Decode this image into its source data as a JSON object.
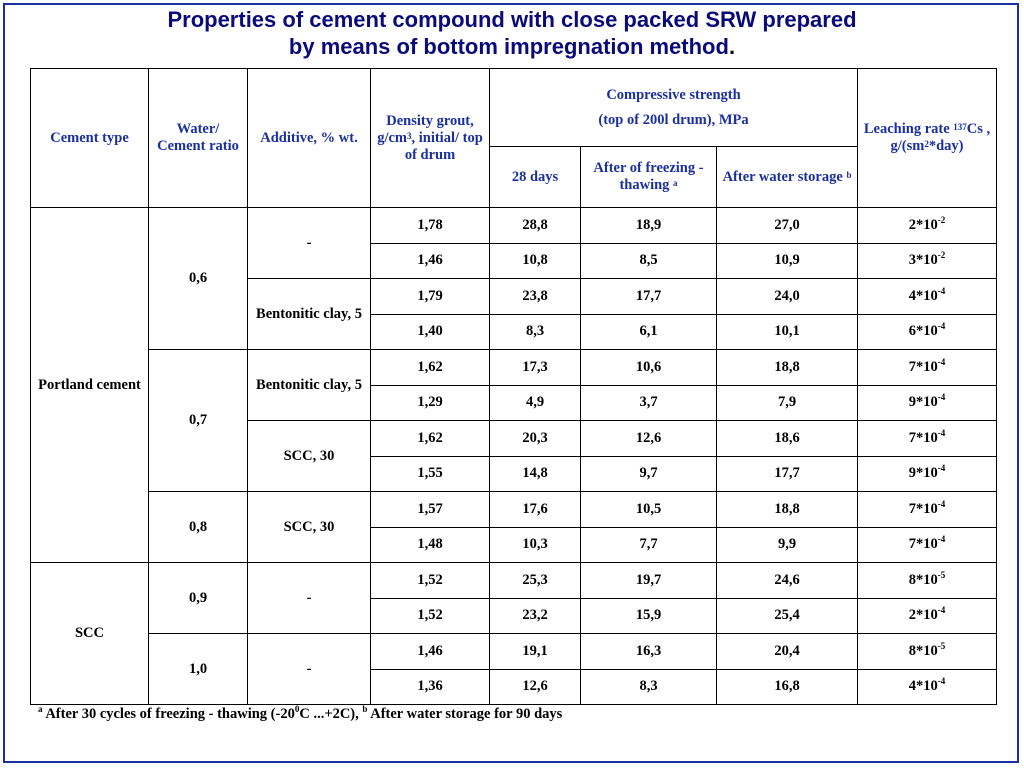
{
  "title": {
    "line1": "Properties of cement compound with close packed SRW prepared",
    "line2": "by means of bottom impregnation method",
    "dot": "."
  },
  "header": {
    "cement_type": "Cement type",
    "wc_ratio": "Water/ Cement ratio",
    "additive": "Additive, % wt.",
    "density_a": "Density grout, g/cm",
    "density_sup": "3",
    "density_b": ", initial/ top of drum",
    "compressive_1": "Compressive strength",
    "compressive_2": "(top of 200l drum), MPa",
    "leach_a": "Leaching rate ",
    "leach_sup1": "137",
    "leach_b": "Cs ,",
    "leach_c": "g/(sm",
    "leach_sup2": "2",
    "leach_d": "*day)",
    "days28": "28 days",
    "freezing": "After of freezing - thawing ",
    "freezing_sup": "a",
    "water_storage": "After water storage ",
    "water_sup": "b"
  },
  "groups": {
    "portland": "Portland cement",
    "scc": "SCC",
    "r06": "0,6",
    "r07": "0,7",
    "r08": "0,8",
    "r09": "0,9",
    "r10": "1,0",
    "dash1": "-",
    "bent1": "Bentonitic clay, 5",
    "bent2": "Bentonitic clay, 5",
    "scc30a": "SCC, 30",
    "scc30b": "SCC, 30",
    "dash2": "-",
    "dash3": "-"
  },
  "rows": [
    {
      "density": "1,78",
      "d28": "28,8",
      "freeze": "18,9",
      "water": "27,0",
      "leach": "2*10",
      "exp": "-2"
    },
    {
      "density": "1,46",
      "d28": "10,8",
      "freeze": "8,5",
      "water": "10,9",
      "leach": "3*10",
      "exp": "-2"
    },
    {
      "density": "1,79",
      "d28": "23,8",
      "freeze": "17,7",
      "water": "24,0",
      "leach": "4*10",
      "exp": "-4"
    },
    {
      "density": "1,40",
      "d28": "8,3",
      "freeze": "6,1",
      "water": "10,1",
      "leach": "6*10",
      "exp": "-4"
    },
    {
      "density": "1,62",
      "d28": "17,3",
      "freeze": "10,6",
      "water": "18,8",
      "leach": "7*10",
      "exp": "-4"
    },
    {
      "density": "1,29",
      "d28": "4,9",
      "freeze": "3,7",
      "water": "7,9",
      "leach": "9*10",
      "exp": "-4"
    },
    {
      "density": "1,62",
      "d28": "20,3",
      "freeze": "12,6",
      "water": "18,6",
      "leach": "7*10",
      "exp": "-4"
    },
    {
      "density": "1,55",
      "d28": "14,8",
      "freeze": "9,7",
      "water": "17,7",
      "leach": "9*10",
      "exp": "-4"
    },
    {
      "density": "1,57",
      "d28": "17,6",
      "freeze": "10,5",
      "water": "18,8",
      "leach": "7*10",
      "exp": "-4"
    },
    {
      "density": "1,48",
      "d28": "10,3",
      "freeze": "7,7",
      "water": "9,9",
      "leach": "7*10",
      "exp": "-4"
    },
    {
      "density": "1,52",
      "d28": "25,3",
      "freeze": "19,7",
      "water": "24,6",
      "leach": "8*10",
      "exp": "-5"
    },
    {
      "density": "1,52",
      "d28": "23,2",
      "freeze": "15,9",
      "water": "25,4",
      "leach": "2*10",
      "exp": "-4"
    },
    {
      "density": "1,46",
      "d28": "19,1",
      "freeze": "16,3",
      "water": "20,4",
      "leach": "8*10",
      "exp": "-5"
    },
    {
      "density": "1,36",
      "d28": "12,6",
      "freeze": "8,3",
      "water": "16,8",
      "leach": "4*10",
      "exp": "-4"
    }
  ],
  "footnote": {
    "a_mark": "a",
    "a_text1": " After 30 cycles of freezing - thawing (-20",
    "deg": "0",
    "a_text2": "C ...+2C), ",
    "b_mark": "b",
    "b_text": " After water storage for 90 days"
  }
}
